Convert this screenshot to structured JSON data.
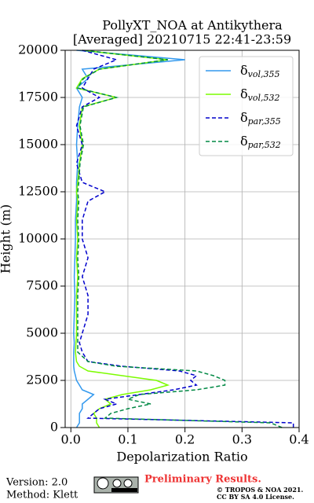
{
  "chart_data": {
    "type": "line",
    "title": "PollyXT_NOA at Antikythera",
    "subtitle": "[Averaged] 20210715 22:41-23:59",
    "xlabel": "Depolarization Ratio",
    "ylabel": "Height (m)",
    "y": [
      0,
      250,
      500,
      750,
      1000,
      1250,
      1500,
      1750,
      2000,
      2250,
      2500,
      2750,
      3000,
      3250,
      3500,
      4000,
      4500,
      5000,
      6000,
      7000,
      8000,
      9000,
      10000,
      11000,
      12000,
      12500,
      13000,
      14000,
      15000,
      16000,
      17000,
      17500,
      18000,
      18500,
      19000,
      19500,
      20000
    ],
    "series": [
      {
        "name": "δvol,355",
        "color": "#3399ee",
        "linestyle": "solid",
        "values": [
          0.01,
          0.015,
          0.015,
          0.015,
          0.02,
          0.02,
          0.03,
          0.04,
          0.02,
          0.015,
          0.01,
          0.008,
          0.006,
          0.005,
          0.005,
          0.005,
          0.006,
          0.005,
          0.006,
          0.007,
          0.006,
          0.007,
          0.008,
          0.008,
          0.01,
          0.01,
          0.01,
          0.012,
          0.01,
          0.012,
          0.015,
          0.02,
          0.01,
          0.03,
          0.02,
          0.2,
          0.01
        ]
      },
      {
        "name": "δvol,532",
        "color": "#7cfc00",
        "linestyle": "solid",
        "values": [
          0.05,
          0.045,
          0.045,
          0.04,
          0.05,
          0.07,
          0.06,
          0.09,
          0.14,
          0.17,
          0.15,
          0.09,
          0.03,
          0.015,
          0.01,
          0.008,
          0.009,
          0.01,
          0.01,
          0.01,
          0.012,
          0.01,
          0.012,
          0.01,
          0.012,
          0.01,
          0.012,
          0.015,
          0.02,
          0.015,
          0.02,
          0.08,
          0.01,
          0.02,
          0.05,
          0.17,
          0.02
        ]
      },
      {
        "name": "δpar,355",
        "color": "#0000cc",
        "linestyle": "dashed",
        "values": [
          0.39,
          0.39,
          0.03,
          0.04,
          0.05,
          0.08,
          0.06,
          0.12,
          0.18,
          0.22,
          0.21,
          0.22,
          0.19,
          0.09,
          0.03,
          0.02,
          0.015,
          0.02,
          0.03,
          0.03,
          0.02,
          0.03,
          0.02,
          0.02,
          0.03,
          0.06,
          0.02,
          0.01,
          0.02,
          0.01,
          0.02,
          0.05,
          0.02,
          0.03,
          0.04,
          0.08,
          0.02
        ]
      },
      {
        "name": "δpar,532",
        "color": "#008844",
        "linestyle": "dashed",
        "values": [
          0.37,
          0.35,
          0.06,
          0.07,
          0.1,
          0.14,
          0.1,
          0.12,
          0.22,
          0.27,
          0.27,
          0.25,
          0.22,
          0.08,
          0.03,
          0.012,
          0.012,
          0.012,
          0.012,
          0.012,
          0.014,
          0.012,
          0.014,
          0.012,
          0.014,
          0.012,
          0.014,
          0.016,
          0.022,
          0.016,
          0.022,
          0.08,
          0.012,
          0.022,
          0.05,
          0.17,
          0.022
        ]
      }
    ],
    "xlim": [
      -0.01,
      0.4
    ],
    "xticks": [
      {
        "value": 0,
        "label": "0.0"
      },
      {
        "value": 0.1,
        "label": "0.1"
      },
      {
        "value": 0.2,
        "label": "0.2"
      },
      {
        "value": 0.3,
        "label": "0.3"
      },
      {
        "value": 0.4,
        "label": "0.4"
      }
    ],
    "ylim": [
      0,
      20000
    ],
    "yticks": [
      0,
      2500,
      5000,
      7500,
      10000,
      12500,
      15000,
      17500,
      20000
    ],
    "grid": true,
    "legend": "upper right"
  },
  "footer": {
    "version": "Version: 2.0",
    "method": "Method: Klett",
    "notice": "Preliminary Results.",
    "copyright": "© TROPOS & NOA 2021.",
    "license": "CC BY SA 4.0 License."
  }
}
